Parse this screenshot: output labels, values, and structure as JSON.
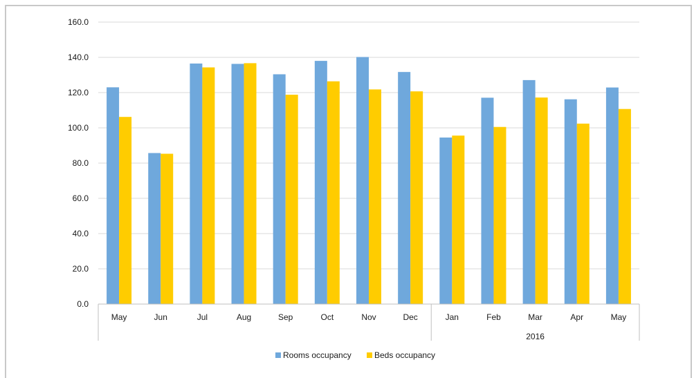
{
  "chart_data": {
    "type": "bar",
    "categories": [
      "May",
      "Jun",
      "Jul",
      "Aug",
      "Sep",
      "Oct",
      "Nov",
      "Dec",
      "Jan",
      "Feb",
      "Mar",
      "Apr",
      "May"
    ],
    "group_labels": [
      {
        "label": "",
        "start": 0,
        "end": 7
      },
      {
        "label": "2016",
        "start": 8,
        "end": 12
      }
    ],
    "series": [
      {
        "name": "Rooms occupancy",
        "color": "#6fa8dc",
        "values": [
          123.0,
          85.7,
          136.5,
          136.3,
          130.4,
          138.0,
          140.2,
          131.7,
          94.5,
          117.1,
          127.1,
          116.2,
          122.9
        ]
      },
      {
        "name": "Beds occupancy",
        "color": "#ffcc00",
        "values": [
          106.2,
          85.3,
          134.3,
          136.7,
          118.8,
          126.4,
          121.8,
          120.7,
          95.6,
          100.5,
          117.2,
          102.4,
          110.7
        ]
      }
    ],
    "ylim": [
      0,
      160
    ],
    "y_ticks": [
      "0.0",
      "20.0",
      "40.0",
      "60.0",
      "80.0",
      "100.0",
      "120.0",
      "140.0",
      "160.0"
    ],
    "y_tick_values": [
      0,
      20,
      40,
      60,
      80,
      100,
      120,
      140,
      160
    ],
    "grid": true,
    "legend_position": "bottom-center",
    "title": "",
    "xlabel": "",
    "ylabel": ""
  }
}
